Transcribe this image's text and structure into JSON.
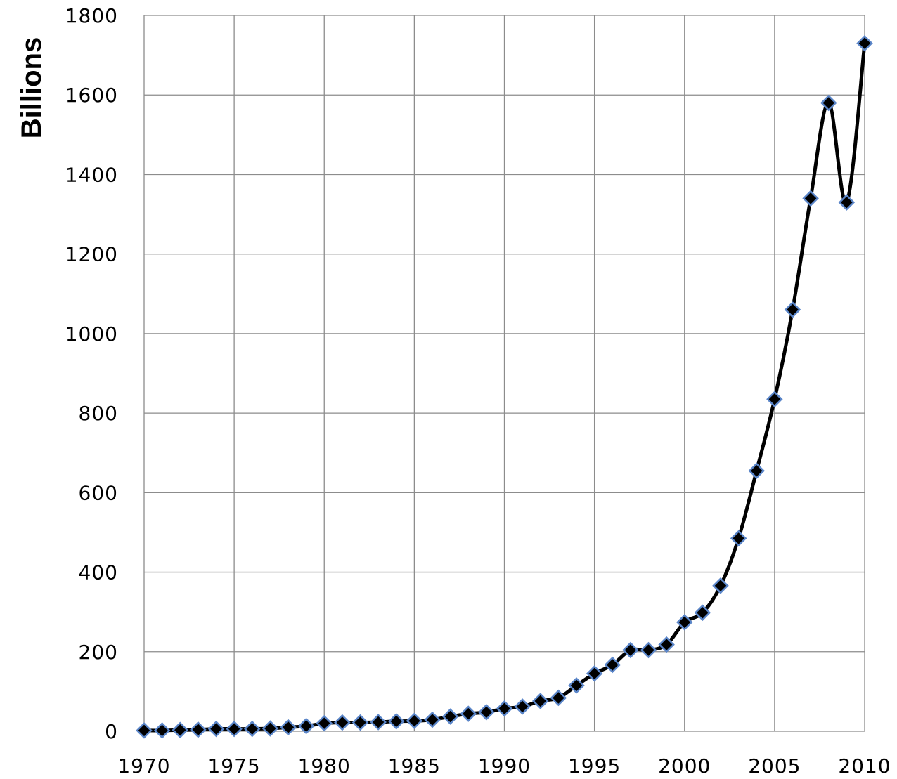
{
  "chart_data": {
    "type": "line",
    "ylabel": "Billions",
    "xlim": [
      1970,
      2010
    ],
    "ylim": [
      0,
      1800
    ],
    "x_ticks": [
      1970,
      1975,
      1980,
      1985,
      1990,
      1995,
      2000,
      2005,
      2010
    ],
    "y_ticks": [
      0,
      200,
      400,
      600,
      800,
      1000,
      1200,
      1400,
      1600,
      1800
    ],
    "y_tick_labels": [
      "0",
      "200",
      "400",
      "600",
      "800",
      "1000",
      "1200",
      "1400",
      "1600",
      "1800"
    ],
    "x_tick_labels": [
      "1970",
      "1975",
      "1980",
      "1985",
      "1990",
      "1995",
      "2000",
      "2005",
      "2010"
    ],
    "grid": true,
    "line_color": "#000000",
    "marker_fill": "#000000",
    "marker_edge": "#5b86c9",
    "series": [
      {
        "x": [
          1970,
          1971,
          1972,
          1973,
          1974,
          1975,
          1976,
          1977,
          1978,
          1979,
          1980,
          1981,
          1982,
          1983,
          1984,
          1985,
          1986,
          1987,
          1988,
          1989,
          1990,
          1991,
          1992,
          1993,
          1994,
          1995,
          1996,
          1997,
          1998,
          1999,
          2000,
          2001,
          2002,
          2003,
          2004,
          2005,
          2006,
          2007,
          2008,
          2009,
          2010
        ],
        "values": [
          2,
          2,
          3,
          4,
          6,
          6,
          6,
          7,
          10,
          13,
          20,
          22,
          22,
          23,
          25,
          26,
          29,
          37,
          44,
          48,
          57,
          62,
          76,
          84,
          115,
          145,
          167,
          204,
          204,
          218,
          274,
          298,
          366,
          485,
          655,
          835,
          1060,
          1340,
          1580,
          1330,
          1730
        ]
      }
    ]
  }
}
